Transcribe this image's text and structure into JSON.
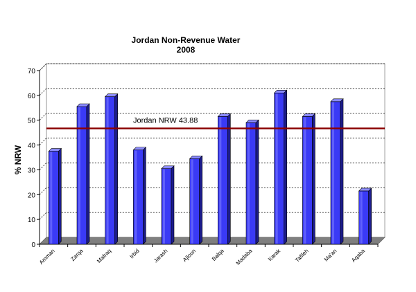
{
  "chart_data": {
    "type": "bar",
    "title": "Jordan Non-Revenue Water",
    "subtitle": "2008",
    "xlabel": "",
    "ylabel": "% NRW",
    "ylim": [
      0,
      70
    ],
    "yticks": [
      0,
      10,
      20,
      30,
      40,
      50,
      60,
      70
    ],
    "categories": [
      "Amman",
      "Zarqa",
      "Mafraq",
      "Irbid",
      "Jarash",
      "Ajloun",
      "Balqa",
      "Madaba",
      "Karak",
      "Tafileh",
      "Ma'an",
      "Aqaba"
    ],
    "values": [
      37.5,
      55.5,
      59.5,
      38,
      30.5,
      34.5,
      51.5,
      49,
      61,
      51.5,
      57.5,
      21.5
    ],
    "grid": true,
    "style": "3d-column",
    "bar_color": "#3a3af5",
    "reference_line": {
      "label": "Jordan NRW 43.88",
      "value": 43.88,
      "color": "#8b0000"
    }
  }
}
